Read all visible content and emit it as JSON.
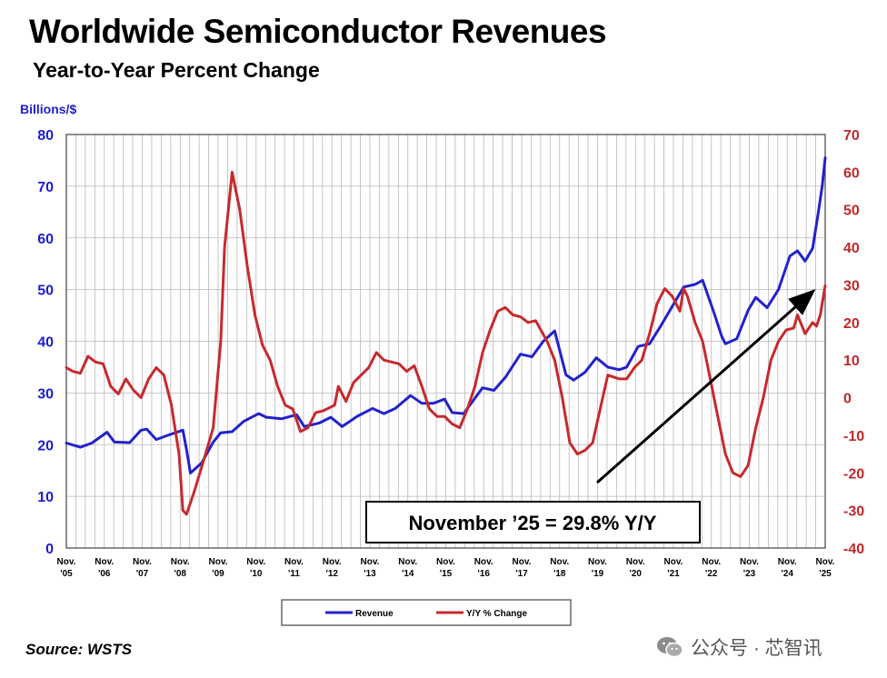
{
  "title": "Worldwide Semiconductor Revenues",
  "subtitle": "Year-to-Year Percent Change",
  "source": "Source: WSTS",
  "watermark": "公众号 · 芯智讯",
  "watermark_icon": "wechat-icon",
  "callout": "November ’25 = 29.8% Y/Y",
  "colors": {
    "revenue": "#2222cc",
    "yoy": "#c62a2e",
    "grid": "#b8b8b8",
    "left_axis": "#1d1dd0",
    "right_axis": "#c0282b"
  },
  "chart_data": {
    "type": "line",
    "left_axis": {
      "label": "Billions/$",
      "ylim": [
        0,
        80
      ],
      "ticks": [
        "0",
        "10",
        "20",
        "30",
        "40",
        "50",
        "60",
        "70",
        "80"
      ]
    },
    "right_axis": {
      "label": "",
      "ylim": [
        -40,
        70
      ],
      "ticks": [
        "-40",
        "-30",
        "-20",
        "-10",
        "0",
        "10",
        "20",
        "30",
        "40",
        "50",
        "60",
        "70"
      ]
    },
    "x_ticks": [
      [
        "Nov.",
        "'05"
      ],
      [
        "Nov.",
        "'06"
      ],
      [
        "Nov.",
        "'07"
      ],
      [
        "Nov.",
        "'08"
      ],
      [
        "Nov.",
        "'09"
      ],
      [
        "Nov.",
        "'10"
      ],
      [
        "Nov.",
        "'11"
      ],
      [
        "Nov.",
        "'12"
      ],
      [
        "Nov.",
        "'13"
      ],
      [
        "Nov.",
        "'14"
      ],
      [
        "Nov.",
        "'15"
      ],
      [
        "Nov.",
        "'16"
      ],
      [
        "Nov.",
        "'17"
      ],
      [
        "Nov.",
        "'18"
      ],
      [
        "Nov.",
        "'19"
      ],
      [
        "Nov.",
        "'20"
      ],
      [
        "Nov.",
        "'21"
      ],
      [
        "Nov.",
        "'22"
      ],
      [
        "Nov.",
        "'23"
      ],
      [
        "Nov.",
        "'24"
      ],
      [
        "Nov.",
        "'25"
      ]
    ],
    "x_range": [
      2005.83,
      2025.83
    ],
    "grid": "vertical and horizontal",
    "legend_position": "bottom-center",
    "series": [
      {
        "name": "Revenue",
        "axis": "left",
        "points": [
          [
            2005.83,
            20.3
          ],
          [
            2006.2,
            19.5
          ],
          [
            2006.5,
            20.3
          ],
          [
            2006.9,
            22.4
          ],
          [
            2007.1,
            20.5
          ],
          [
            2007.5,
            20.4
          ],
          [
            2007.8,
            22.8
          ],
          [
            2007.95,
            23.0
          ],
          [
            2008.2,
            21.0
          ],
          [
            2008.5,
            21.8
          ],
          [
            2008.9,
            22.8
          ],
          [
            2009.0,
            19.0
          ],
          [
            2009.1,
            14.5
          ],
          [
            2009.4,
            16.5
          ],
          [
            2009.7,
            20.5
          ],
          [
            2009.9,
            22.3
          ],
          [
            2010.2,
            22.5
          ],
          [
            2010.5,
            24.5
          ],
          [
            2010.9,
            26.0
          ],
          [
            2011.1,
            25.3
          ],
          [
            2011.5,
            25.0
          ],
          [
            2011.9,
            25.8
          ],
          [
            2012.1,
            23.5
          ],
          [
            2012.5,
            24.2
          ],
          [
            2012.8,
            25.3
          ],
          [
            2013.1,
            23.5
          ],
          [
            2013.5,
            25.5
          ],
          [
            2013.9,
            27.0
          ],
          [
            2014.2,
            26.0
          ],
          [
            2014.5,
            27.0
          ],
          [
            2014.9,
            29.5
          ],
          [
            2015.2,
            28.0
          ],
          [
            2015.5,
            28.0
          ],
          [
            2015.8,
            28.8
          ],
          [
            2016.0,
            26.2
          ],
          [
            2016.3,
            26.0
          ],
          [
            2016.6,
            29.0
          ],
          [
            2016.8,
            31.0
          ],
          [
            2017.1,
            30.5
          ],
          [
            2017.4,
            33.0
          ],
          [
            2017.8,
            37.5
          ],
          [
            2018.1,
            37.0
          ],
          [
            2018.4,
            40.0
          ],
          [
            2018.7,
            42.0
          ],
          [
            2019.0,
            33.5
          ],
          [
            2019.2,
            32.5
          ],
          [
            2019.5,
            34.0
          ],
          [
            2019.8,
            36.8
          ],
          [
            2020.1,
            35.0
          ],
          [
            2020.4,
            34.5
          ],
          [
            2020.6,
            35.0
          ],
          [
            2020.9,
            39.0
          ],
          [
            2021.2,
            39.5
          ],
          [
            2021.5,
            43.0
          ],
          [
            2021.9,
            48.0
          ],
          [
            2022.1,
            50.5
          ],
          [
            2022.4,
            51.0
          ],
          [
            2022.6,
            51.8
          ],
          [
            2022.9,
            45.5
          ],
          [
            2023.1,
            41.0
          ],
          [
            2023.2,
            39.5
          ],
          [
            2023.5,
            40.5
          ],
          [
            2023.8,
            46.0
          ],
          [
            2024.0,
            48.5
          ],
          [
            2024.3,
            46.5
          ],
          [
            2024.6,
            50.0
          ],
          [
            2024.9,
            56.5
          ],
          [
            2025.1,
            57.5
          ],
          [
            2025.3,
            55.5
          ],
          [
            2025.5,
            58.0
          ],
          [
            2025.65,
            65.0
          ],
          [
            2025.75,
            70.0
          ],
          [
            2025.83,
            75.5
          ]
        ]
      },
      {
        "name": "Y/Y % Change",
        "axis": "right",
        "points": [
          [
            2005.83,
            8.0
          ],
          [
            2006.0,
            7.0
          ],
          [
            2006.2,
            6.5
          ],
          [
            2006.4,
            11.0
          ],
          [
            2006.6,
            9.5
          ],
          [
            2006.8,
            9.0
          ],
          [
            2007.0,
            3.0
          ],
          [
            2007.2,
            1.0
          ],
          [
            2007.4,
            5.0
          ],
          [
            2007.6,
            2.0
          ],
          [
            2007.8,
            0.0
          ],
          [
            2008.0,
            5.0
          ],
          [
            2008.2,
            8.0
          ],
          [
            2008.4,
            6.0
          ],
          [
            2008.6,
            -2.0
          ],
          [
            2008.8,
            -15.0
          ],
          [
            2008.9,
            -30.0
          ],
          [
            2009.0,
            -31.0
          ],
          [
            2009.2,
            -25.0
          ],
          [
            2009.5,
            -15.0
          ],
          [
            2009.7,
            -8.0
          ],
          [
            2009.9,
            15.0
          ],
          [
            2010.0,
            40.0
          ],
          [
            2010.2,
            60.0
          ],
          [
            2010.4,
            50.0
          ],
          [
            2010.6,
            35.0
          ],
          [
            2010.8,
            22.0
          ],
          [
            2011.0,
            14.0
          ],
          [
            2011.2,
            10.0
          ],
          [
            2011.4,
            3.0
          ],
          [
            2011.6,
            -2.0
          ],
          [
            2011.8,
            -3.0
          ],
          [
            2012.0,
            -9.0
          ],
          [
            2012.2,
            -8.0
          ],
          [
            2012.4,
            -4.0
          ],
          [
            2012.6,
            -3.5
          ],
          [
            2012.9,
            -2.0
          ],
          [
            2013.0,
            3.0
          ],
          [
            2013.2,
            -1.0
          ],
          [
            2013.4,
            4.0
          ],
          [
            2013.6,
            6.0
          ],
          [
            2013.8,
            8.0
          ],
          [
            2014.0,
            12.0
          ],
          [
            2014.2,
            10.0
          ],
          [
            2014.4,
            9.5
          ],
          [
            2014.6,
            9.0
          ],
          [
            2014.8,
            7.0
          ],
          [
            2015.0,
            8.5
          ],
          [
            2015.2,
            3.0
          ],
          [
            2015.4,
            -3.0
          ],
          [
            2015.6,
            -5.0
          ],
          [
            2015.8,
            -5.0
          ],
          [
            2016.0,
            -7.0
          ],
          [
            2016.2,
            -8.0
          ],
          [
            2016.4,
            -3.0
          ],
          [
            2016.6,
            3.0
          ],
          [
            2016.8,
            12.0
          ],
          [
            2017.0,
            18.0
          ],
          [
            2017.2,
            23.0
          ],
          [
            2017.4,
            24.0
          ],
          [
            2017.6,
            22.0
          ],
          [
            2017.8,
            21.5
          ],
          [
            2018.0,
            20.0
          ],
          [
            2018.2,
            20.5
          ],
          [
            2018.5,
            15.0
          ],
          [
            2018.7,
            10.0
          ],
          [
            2018.9,
            0.0
          ],
          [
            2019.1,
            -12.0
          ],
          [
            2019.3,
            -15.0
          ],
          [
            2019.5,
            -14.0
          ],
          [
            2019.7,
            -12.0
          ],
          [
            2019.9,
            -3.0
          ],
          [
            2020.1,
            6.0
          ],
          [
            2020.4,
            5.0
          ],
          [
            2020.6,
            5.0
          ],
          [
            2020.8,
            8.0
          ],
          [
            2021.0,
            10.0
          ],
          [
            2021.2,
            17.0
          ],
          [
            2021.4,
            25.0
          ],
          [
            2021.6,
            29.0
          ],
          [
            2021.8,
            27.0
          ],
          [
            2022.0,
            23.0
          ],
          [
            2022.1,
            29.0
          ],
          [
            2022.2,
            27.0
          ],
          [
            2022.4,
            20.0
          ],
          [
            2022.6,
            15.0
          ],
          [
            2022.8,
            5.0
          ],
          [
            2023.0,
            -5.0
          ],
          [
            2023.2,
            -15.0
          ],
          [
            2023.4,
            -20.0
          ],
          [
            2023.6,
            -21.0
          ],
          [
            2023.8,
            -18.0
          ],
          [
            2024.0,
            -8.0
          ],
          [
            2024.2,
            0.0
          ],
          [
            2024.4,
            10.0
          ],
          [
            2024.6,
            15.0
          ],
          [
            2024.8,
            18.0
          ],
          [
            2025.0,
            18.5
          ],
          [
            2025.1,
            22.0
          ],
          [
            2025.3,
            17.0
          ],
          [
            2025.5,
            20.0
          ],
          [
            2025.6,
            19.0
          ],
          [
            2025.7,
            22.0
          ],
          [
            2025.83,
            29.8
          ]
        ]
      }
    ],
    "annotations": [
      "November ’25 = 29.8% Y/Y"
    ]
  }
}
